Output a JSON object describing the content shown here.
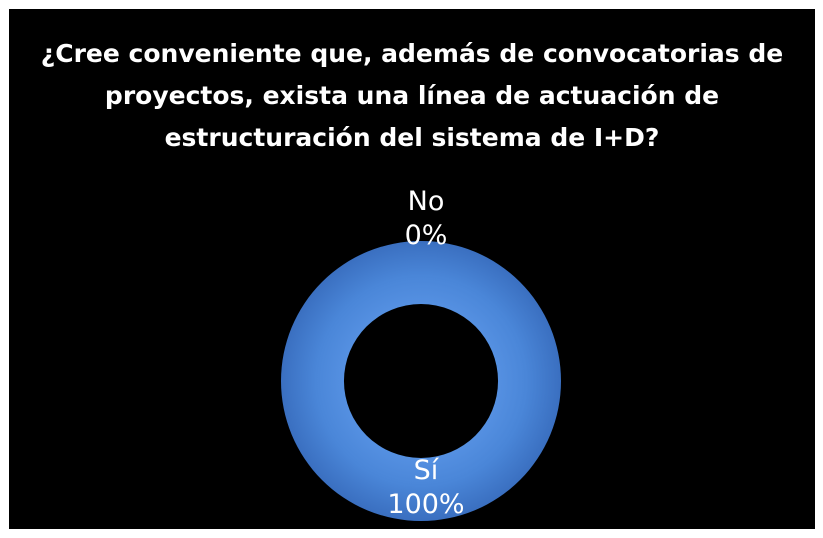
{
  "chart_data": {
    "type": "pie",
    "variant": "donut",
    "title_lines": [
      "¿Cree conveniente que, además de convocatorias de",
      "proyectos, exista una línea de actuación de",
      "estructuración del sistema de I+D?"
    ],
    "slices": [
      {
        "label": "Sí",
        "value": 100,
        "value_label": "100%",
        "color": "#4a86d8"
      },
      {
        "label": "No",
        "value": 0,
        "value_label": "0%",
        "color": "#c0504d"
      }
    ],
    "legend": "none",
    "background": "#000000"
  }
}
